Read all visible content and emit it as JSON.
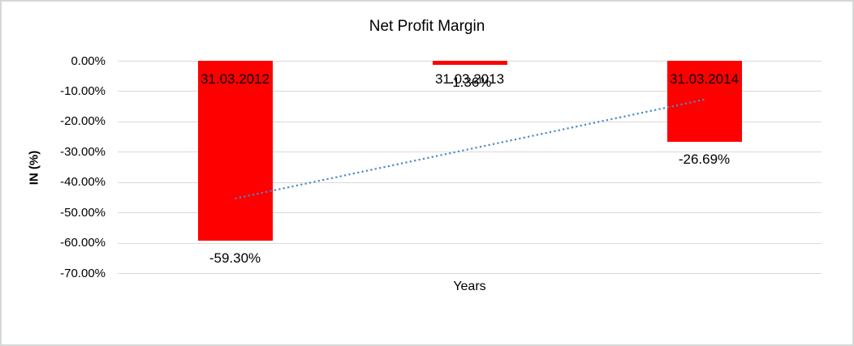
{
  "chart_data": {
    "type": "bar",
    "title": "Net Profit Margin",
    "xlabel": "Years",
    "ylabel": "IN (%)",
    "categories": [
      "31.03.2012",
      "31.03.2013",
      "31.03.2014"
    ],
    "values": [
      -59.3,
      -1.36,
      -26.69
    ],
    "value_labels": [
      "-59.30%",
      "-1.36%",
      "-26.69%"
    ],
    "ylim": [
      -70,
      0
    ],
    "ytick_step": 10,
    "ytick_labels": [
      "0.00%",
      "-10.00%",
      "-20.00%",
      "-30.00%",
      "-40.00%",
      "-50.00%",
      "-60.00%",
      "-70.00%"
    ],
    "grid": true,
    "legend": "none",
    "bar_color": "#ff0000",
    "label_color": "#000000",
    "gridline_color": "#d9d9d9",
    "trendline": {
      "style": "dotted",
      "color": "#4e87c6",
      "start_value": -45.4,
      "end_value": -12.8,
      "spans_categories": [
        1,
        3
      ]
    }
  },
  "frame": {
    "border_color": "#d6d8d7"
  }
}
